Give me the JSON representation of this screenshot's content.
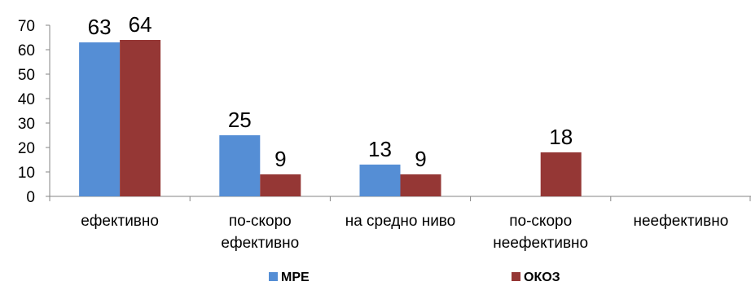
{
  "chart_data": {
    "type": "bar",
    "categories": [
      [
        "ефективно"
      ],
      [
        "по-скоро",
        "ефективно"
      ],
      [
        "на средно ниво"
      ],
      [
        "по-скоро",
        "неефективно"
      ],
      [
        "неефективно"
      ]
    ],
    "series": [
      {
        "name": "МРЕ",
        "color": "#558ED5",
        "values": [
          63,
          25,
          13,
          null,
          null
        ]
      },
      {
        "name": "ОКОЗ",
        "color": "#953735",
        "values": [
          64,
          9,
          9,
          18,
          null
        ]
      }
    ],
    "title": "",
    "xlabel": "",
    "ylabel": "",
    "ylim": [
      0,
      70
    ],
    "yticks": [
      0,
      10,
      20,
      30,
      40,
      50,
      60,
      70
    ],
    "grid": false,
    "legend_position": "bottom",
    "data_labels": true
  }
}
